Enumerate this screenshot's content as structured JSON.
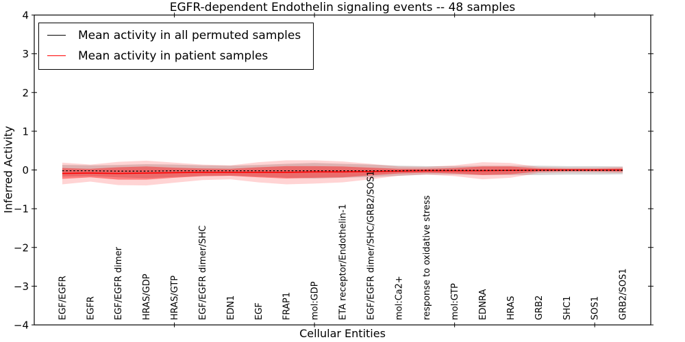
{
  "chart_data": {
    "type": "line",
    "title": "EGFR-dependent Endothelin signaling events -- 48 samples",
    "xlabel": "Cellular Entities",
    "ylabel": "Inferred Activity",
    "xlim": [
      0,
      22
    ],
    "ylim": [
      -4,
      4
    ],
    "grid": false,
    "legend_position": "upper left",
    "x": [
      1,
      2,
      3,
      4,
      5,
      6,
      7,
      8,
      9,
      10,
      11,
      12,
      13,
      14,
      15,
      16,
      17,
      18,
      19,
      20,
      21
    ],
    "categories": [
      "EGF/EGFR",
      "EGFR",
      "EGF/EGFR dimer",
      "HRAS/GDP",
      "HRAS/GTP",
      "EGF/EGFR dimer/SHC",
      "EDN1",
      "EGF",
      "FRAP1",
      "mol:GDP",
      "ETA receptor/Endothelin-1",
      "EGF/EGFR dimer/SHC/GRB2/SOS1",
      "mol:Ca2+",
      "response to oxidative stress",
      "mol:GTP",
      "EDNRA",
      "HRAS",
      "GRB2",
      "SHC1",
      "SOS1",
      "GRB2/SOS1"
    ],
    "x_tick_values": [
      5,
      10,
      15,
      20
    ],
    "y_ticks": [
      {
        "value": 4,
        "label": "4"
      },
      {
        "value": 3,
        "label": "3"
      },
      {
        "value": 2,
        "label": "2"
      },
      {
        "value": 1,
        "label": "1"
      },
      {
        "value": 0,
        "label": "0"
      },
      {
        "value": -1,
        "label": "−1"
      },
      {
        "value": -2,
        "label": "−2"
      },
      {
        "value": -3,
        "label": "−3"
      },
      {
        "value": -4,
        "label": "−4"
      }
    ],
    "series": [
      {
        "name": "Mean activity in all permuted samples",
        "line_color": "#000000",
        "line_style": "dashed",
        "band_color": "#777777",
        "band_opacity": 0.3,
        "mean": [
          -0.02,
          -0.02,
          -0.03,
          -0.03,
          -0.02,
          -0.02,
          -0.02,
          -0.02,
          -0.02,
          -0.02,
          -0.02,
          -0.02,
          -0.02,
          -0.01,
          -0.01,
          -0.01,
          -0.01,
          -0.01,
          -0.01,
          -0.01,
          -0.01
        ],
        "band_halfwidth": [
          0.15,
          0.14,
          0.16,
          0.18,
          0.16,
          0.14,
          0.13,
          0.15,
          0.18,
          0.2,
          0.18,
          0.16,
          0.13,
          0.11,
          0.11,
          0.12,
          0.12,
          0.12,
          0.11,
          0.11,
          0.1
        ]
      },
      {
        "name": "Mean activity in patient samples",
        "line_color": "#ff0000",
        "line_style": "solid",
        "band_color": "#ff0000",
        "inner_band_opacity": 0.4,
        "outer_band_opacity": 0.17,
        "mean": [
          -0.09,
          -0.08,
          -0.09,
          -0.08,
          -0.07,
          -0.06,
          -0.06,
          -0.06,
          -0.06,
          -0.05,
          -0.05,
          -0.04,
          -0.03,
          -0.02,
          -0.02,
          -0.02,
          -0.01,
          0.0,
          0.0,
          0.0,
          0.0
        ],
        "inner_band_halfwidth": [
          0.14,
          0.11,
          0.16,
          0.17,
          0.13,
          0.1,
          0.09,
          0.13,
          0.16,
          0.15,
          0.14,
          0.1,
          0.06,
          0.05,
          0.07,
          0.11,
          0.1,
          0.04,
          0.03,
          0.03,
          0.04
        ],
        "outer_band_halfwidth": [
          0.28,
          0.22,
          0.3,
          0.32,
          0.26,
          0.2,
          0.18,
          0.26,
          0.31,
          0.3,
          0.27,
          0.2,
          0.12,
          0.1,
          0.14,
          0.22,
          0.19,
          0.08,
          0.06,
          0.06,
          0.08
        ]
      }
    ]
  }
}
